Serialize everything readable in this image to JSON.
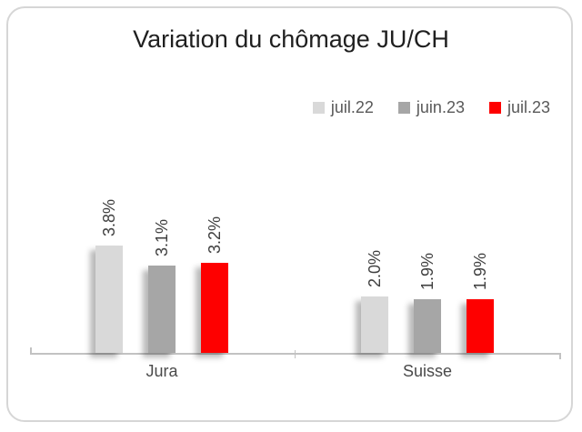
{
  "title": "Variation du chômage JU/CH",
  "legend": {
    "position": "top-right",
    "items": [
      {
        "label": "juil.22",
        "color": "#d9d9d9"
      },
      {
        "label": "juin.23",
        "color": "#a6a6a6"
      },
      {
        "label": "juil.23",
        "color": "#fe0000"
      }
    ]
  },
  "chart_data": {
    "type": "bar",
    "title": "Variation du chômage JU/CH",
    "categories": [
      "Jura",
      "Suisse"
    ],
    "series": [
      {
        "name": "juil.22",
        "color": "#d9d9d9",
        "values": [
          3.8,
          2.0
        ],
        "labels": [
          "3.8%",
          "2.0%"
        ]
      },
      {
        "name": "juin.23",
        "color": "#a6a6a6",
        "values": [
          3.1,
          1.9
        ],
        "labels": [
          "3.1%",
          "1.9%"
        ]
      },
      {
        "name": "juil.23",
        "color": "#fe0000",
        "values": [
          3.2,
          1.9
        ],
        "labels": [
          "3.2%",
          "1.9%"
        ]
      }
    ],
    "unit": "%",
    "ylim": [
      0,
      4.2
    ],
    "grid": false,
    "y_axis_visible": false,
    "legend_position": "top-right",
    "data_labels": "rotated 90° above bars",
    "colors": {
      "axis": "#c2c2c2",
      "frame_border": "#d6d6d6",
      "title_text": "#1f1f1f",
      "label_text": "#404040",
      "category_text": "#4a4a4a",
      "legend_text": "#595959"
    }
  }
}
